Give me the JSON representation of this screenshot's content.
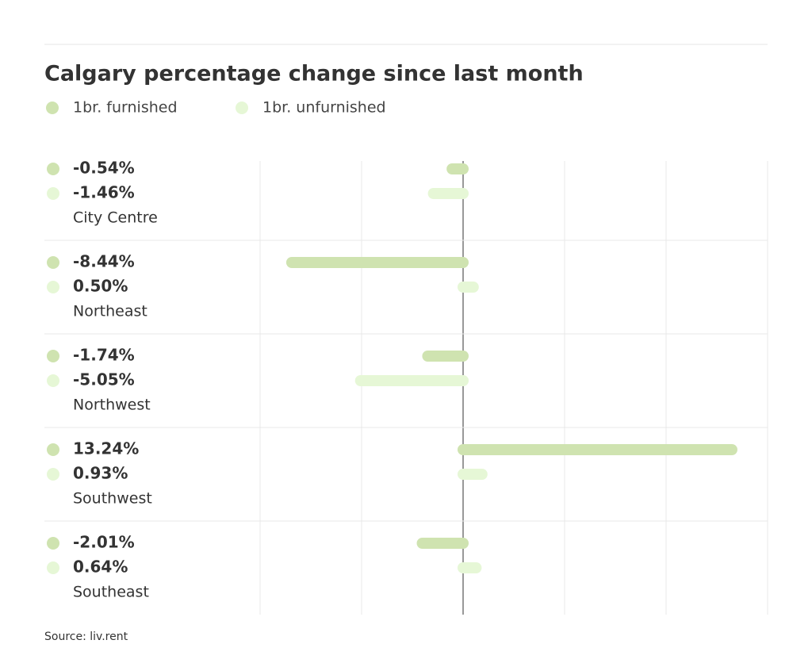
{
  "chart_data": {
    "type": "bar",
    "title": "Calgary percentage change since last month",
    "categories": [
      "City Centre",
      "Northeast",
      "Northwest",
      "Southwest",
      "Southeast"
    ],
    "series": [
      {
        "name": "1br. furnished",
        "color": "#cfe3b0",
        "values": [
          -0.54,
          -8.44,
          -1.74,
          13.24,
          -2.01
        ],
        "value_labels": [
          "-0.54%",
          "-8.44%",
          "-1.74%",
          "13.24%",
          "-2.01%"
        ]
      },
      {
        "name": "1br. unfurnished",
        "color": "#e6f7d6",
        "values": [
          -1.46,
          0.5,
          -5.05,
          0.93,
          0.64
        ],
        "value_labels": [
          "-1.46%",
          "0.50%",
          "-5.05%",
          "0.93%",
          "0.64%"
        ]
      }
    ],
    "xlim": [
      -10,
      15
    ],
    "xticks": [
      -10,
      -5,
      0,
      5,
      10,
      15
    ],
    "grid": true,
    "source": "Source: liv.rent"
  }
}
